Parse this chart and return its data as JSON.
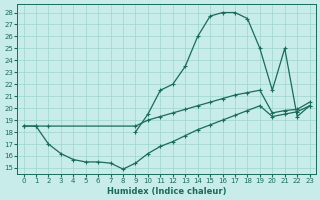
{
  "xlabel": "Humidex (Indice chaleur)",
  "bg_color": "#c8ece9",
  "grid_color": "#9dd4ce",
  "line_color": "#1a6b5a",
  "xlim": [
    -0.5,
    23.5
  ],
  "ylim": [
    14.5,
    28.7
  ],
  "xticks": [
    0,
    1,
    2,
    3,
    4,
    5,
    6,
    7,
    8,
    9,
    10,
    11,
    12,
    13,
    14,
    15,
    16,
    17,
    18,
    19,
    20,
    21,
    22,
    23
  ],
  "yticks": [
    15,
    16,
    17,
    18,
    19,
    20,
    21,
    22,
    23,
    24,
    25,
    26,
    27,
    28
  ],
  "curve_top_x": [
    9,
    10,
    11,
    12,
    13,
    14,
    15,
    16,
    17,
    18,
    19,
    20,
    21,
    22,
    23
  ],
  "curve_top_y": [
    18.0,
    19.5,
    21.5,
    22.0,
    23.5,
    26.0,
    27.7,
    28.0,
    28.0,
    27.5,
    25.0,
    21.5,
    25.0,
    19.3,
    20.2
  ],
  "curve_mid_x": [
    0,
    1,
    2,
    9,
    10,
    11,
    12,
    13,
    14,
    15,
    16,
    17,
    18,
    19,
    20,
    21,
    22,
    23
  ],
  "curve_mid_y": [
    18.5,
    18.5,
    18.5,
    18.5,
    19.0,
    19.3,
    19.6,
    19.9,
    20.2,
    20.5,
    20.8,
    21.1,
    21.3,
    21.5,
    19.6,
    19.8,
    19.9,
    20.5
  ],
  "curve_low_x": [
    0,
    1,
    2,
    3,
    4,
    5,
    6,
    7,
    8,
    9,
    10,
    11,
    12,
    13,
    14,
    15,
    16,
    17,
    18,
    19,
    20,
    21,
    22,
    23
  ],
  "curve_low_y": [
    18.5,
    18.5,
    17.0,
    16.2,
    15.7,
    15.5,
    15.5,
    15.4,
    14.9,
    15.4,
    16.2,
    16.8,
    17.2,
    17.7,
    18.2,
    18.6,
    19.0,
    19.4,
    19.8,
    20.2,
    19.3,
    19.5,
    19.7,
    20.2
  ]
}
